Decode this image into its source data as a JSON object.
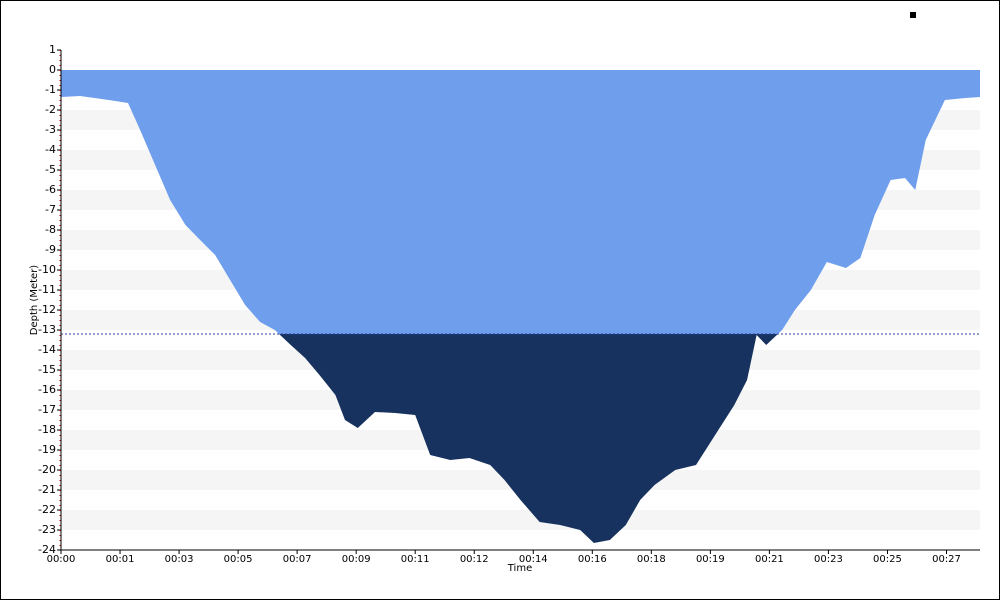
{
  "chart_data": {
    "type": "area",
    "y_label": "Depth (Meter)",
    "x_label": "Time",
    "x": [
      0,
      0.6,
      1.5,
      2.1,
      2.48,
      2.95,
      3.42,
      3.9,
      4.36,
      4.83,
      5.3,
      5.77,
      6.24,
      6.7,
      7.2,
      7.65,
      8.1,
      8.6,
      8.9,
      9.3,
      9.84,
      10.47,
      11.1,
      11.57,
      12.2,
      12.8,
      13.45,
      13.9,
      14.4,
      15.0,
      15.64,
      16.27,
      16.7,
      17.2,
      17.7,
      18.15,
      18.6,
      19.25,
      19.9,
      20.5,
      21.1,
      21.5,
      21.8,
      22.1,
      22.6,
      23.0,
      23.5,
      24.0,
      24.6,
      25.05,
      25.5,
      26.0,
      26.45,
      26.77,
      27.1,
      27.7,
      28.35,
      28.8
    ],
    "series": [
      {
        "color": "#6f9fec",
        "color_below": "#17325f",
        "values": [
          -1.35,
          -1.3,
          -1.5,
          -1.65,
          -3,
          -4.75,
          -6.5,
          -7.75,
          -8.5,
          -9.25,
          -10.5,
          -11.75,
          -12.6,
          -13,
          -13.75,
          -14.4,
          -15.25,
          -16.25,
          -17.5,
          -17.9,
          -17.1,
          -17.15,
          -17.25,
          -19.25,
          -19.5,
          -19.4,
          -19.75,
          -20.5,
          -21.5,
          -22.6,
          -22.75,
          -23,
          -23.65,
          -23.5,
          -22.75,
          -21.5,
          -20.75,
          -20,
          -19.75,
          -18.25,
          -16.75,
          -15.5,
          -13.25,
          -13.75,
          -13,
          -12,
          -11,
          -9.6,
          -9.9,
          -9.4,
          -7.25,
          -5.5,
          -5.4,
          -6,
          -3.5,
          -1.5,
          -1.4,
          -1.35
        ]
      }
    ],
    "threshold": -13.2,
    "xlim": [
      0,
      28.8
    ],
    "ylim": [
      -24,
      1
    ],
    "xticks": [
      {
        "value": 0,
        "label": "00:00"
      },
      {
        "value": 1.85,
        "label": "00:01"
      },
      {
        "value": 3.7,
        "label": "00:03"
      },
      {
        "value": 5.55,
        "label": "00:05"
      },
      {
        "value": 7.4,
        "label": "00:07"
      },
      {
        "value": 9.25,
        "label": "00:09"
      },
      {
        "value": 11.1,
        "label": "00:11"
      },
      {
        "value": 12.95,
        "label": "00:12"
      },
      {
        "value": 14.8,
        "label": "00:14"
      },
      {
        "value": 16.65,
        "label": "00:16"
      },
      {
        "value": 18.5,
        "label": "00:18"
      },
      {
        "value": 20.35,
        "label": "00:19"
      },
      {
        "value": 22.2,
        "label": "00:21"
      },
      {
        "value": 24.05,
        "label": "00:23"
      },
      {
        "value": 25.9,
        "label": "00:25"
      },
      {
        "value": 27.75,
        "label": "00:27"
      }
    ],
    "yticks": [
      1,
      0,
      -1,
      -2,
      -3,
      -4,
      -5,
      -6,
      -7,
      -8,
      -9,
      -10,
      -11,
      -12,
      -13,
      -14,
      -15,
      -16,
      -17,
      -18,
      -19,
      -20,
      -21,
      -22,
      -23,
      -24
    ],
    "grid": true
  }
}
